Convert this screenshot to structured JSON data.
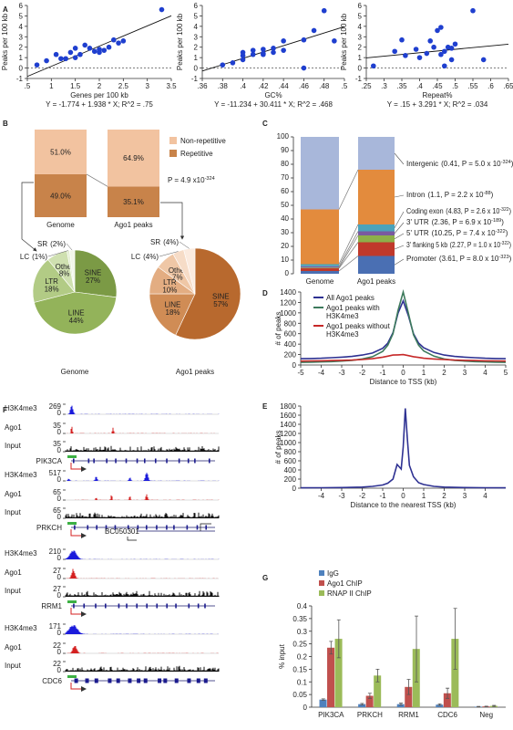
{
  "panel_labels": [
    "A",
    "B",
    "C",
    "D",
    "E",
    "F",
    "G"
  ],
  "chart_data": [
    {
      "type": "scatter",
      "xlabel": "Genes per 100 kb",
      "ylabel": "Peaks per 100 kb",
      "color": "#1f3fcf",
      "x": [
        0.7,
        0.9,
        1.1,
        1.2,
        1.3,
        1.4,
        1.5,
        1.5,
        1.6,
        1.7,
        1.8,
        1.9,
        2.0,
        2.0,
        2.1,
        2.2,
        2.3,
        2.4,
        2.5,
        3.3
      ],
      "values": [
        0.3,
        0.7,
        1.3,
        0.9,
        0.9,
        1.5,
        1.9,
        1.0,
        1.3,
        2.2,
        1.9,
        1.6,
        1.5,
        1.8,
        1.7,
        2.0,
        2.7,
        2.4,
        2.6,
        5.6
      ],
      "xlim": [
        0.5,
        3.5
      ],
      "xticks": [
        {
          "value": 0.5,
          "label": ".5"
        },
        1,
        1.5,
        2,
        2.5,
        3,
        3.5
      ],
      "ylim": [
        -1,
        6
      ],
      "yticks": [
        -1,
        0,
        1,
        2,
        3,
        4,
        5,
        6
      ],
      "reference_line": 0,
      "fit": {
        "intercept": -1.774,
        "slope": 1.938
      },
      "equation": "Y = -1.774 + 1.938 * X; R^2 = .75"
    },
    {
      "type": "scatter",
      "xlabel": "GC%",
      "ylabel": "Peaks per 100 kb",
      "color": "#1f3fcf",
      "x": [
        0.38,
        0.39,
        0.4,
        0.4,
        0.4,
        0.41,
        0.41,
        0.42,
        0.42,
        0.42,
        0.43,
        0.43,
        0.44,
        0.44,
        0.46,
        0.46,
        0.47,
        0.48,
        0.49
      ],
      "values": [
        0.3,
        0.5,
        0.8,
        1.2,
        1.5,
        1.3,
        1.7,
        1.8,
        1.3,
        1.4,
        1.9,
        1.5,
        2.6,
        1.7,
        2.7,
        0.0,
        3.6,
        5.5,
        2.6
      ],
      "xlim": [
        0.36,
        0.5
      ],
      "xticks": [
        {
          "value": 0.36,
          "label": ".36"
        },
        {
          "value": 0.38,
          "label": ".38"
        },
        {
          "value": 0.4,
          "label": ".4"
        },
        {
          "value": 0.42,
          "label": ".42"
        },
        {
          "value": 0.44,
          "label": ".44"
        },
        {
          "value": 0.46,
          "label": ".46"
        },
        {
          "value": 0.48,
          "label": ".48"
        },
        {
          "value": 0.5,
          "label": ".5"
        }
      ],
      "ylim": [
        -1,
        6
      ],
      "yticks": [
        -1,
        0,
        1,
        2,
        3,
        4,
        5,
        6
      ],
      "reference_line": 0,
      "fit": {
        "intercept": -11.234,
        "slope": 30.411
      },
      "equation": "Y = -11.234 + 30.411 * X; R^2 = .468"
    },
    {
      "type": "scatter",
      "xlabel": "Repeat%",
      "ylabel": "Peaks per 100 kb",
      "color": "#1f3fcf",
      "x": [
        0.27,
        0.33,
        0.35,
        0.36,
        0.39,
        0.4,
        0.42,
        0.43,
        0.44,
        0.45,
        0.46,
        0.46,
        0.47,
        0.47,
        0.48,
        0.49,
        0.49,
        0.5,
        0.55,
        0.58
      ],
      "values": [
        0.2,
        1.6,
        2.7,
        1.2,
        1.8,
        1.0,
        1.4,
        2.6,
        2.0,
        3.6,
        3.9,
        1.3,
        1.6,
        0.2,
        2.0,
        1.9,
        0.8,
        2.3,
        5.5,
        0.8
      ],
      "xlim": [
        0.25,
        0.65
      ],
      "xticks": [
        {
          "value": 0.25,
          "label": ".25"
        },
        {
          "value": 0.3,
          "label": ".3"
        },
        {
          "value": 0.35,
          "label": ".35"
        },
        {
          "value": 0.4,
          "label": ".4"
        },
        {
          "value": 0.45,
          "label": ".45"
        },
        {
          "value": 0.5,
          "label": ".5"
        },
        {
          "value": 0.55,
          "label": ".55"
        },
        {
          "value": 0.6,
          "label": ".6"
        },
        {
          "value": 0.65,
          "label": ".65"
        }
      ],
      "ylim": [
        -1,
        6
      ],
      "yticks": [
        -1,
        0,
        1,
        2,
        3,
        4,
        5,
        6
      ],
      "reference_line": 0,
      "fit": {
        "intercept": 0.15,
        "slope": 3.291
      },
      "equation": "Y = .15 + 3.291 * X; R^2 = .034"
    },
    {
      "type": "stacked_bar",
      "categories": [
        "Genome",
        "Ago1 peaks"
      ],
      "ylim": [
        0,
        100
      ],
      "legend": "right",
      "series": [
        {
          "name": "Repetitive",
          "color": "#c8834a",
          "values": [
            49.0,
            35.1
          ],
          "value_labels": [
            "49.0%",
            "35.1%"
          ]
        },
        {
          "name": "Non-repetitive",
          "color": "#f2c3a0",
          "values": [
            51.0,
            64.9
          ],
          "value_labels": [
            "51.0%",
            "64.9%"
          ]
        }
      ],
      "annotation": {
        "text": "P = 4.9 x10",
        "sup": "-324"
      }
    },
    {
      "type": "pie",
      "title": "Genome",
      "categories": [
        "SINE",
        "LINE",
        "LTR",
        "Other",
        "LC",
        "SR"
      ],
      "values": [
        27,
        44,
        18,
        8,
        1,
        2
      ],
      "value_labels": [
        "27%",
        "44%",
        "18%",
        "8%",
        "(1%)",
        "(2%)"
      ],
      "colors": [
        "#7b9a45",
        "#93b35a",
        "#b2cb85",
        "#cfe0b0",
        "#e4eed3",
        "#f1f6e8"
      ]
    },
    {
      "type": "pie",
      "title": "Ago1 peaks",
      "categories": [
        "SINE",
        "LINE",
        "LTR",
        "Other",
        "LC",
        "SR"
      ],
      "values": [
        57,
        18,
        10,
        7,
        4,
        4
      ],
      "value_labels": [
        "57%",
        "18%",
        "10%",
        "7%",
        "(4%)",
        "(4%)"
      ],
      "colors": [
        "#b8692e",
        "#d08c55",
        "#e3ad82",
        "#efc7a6",
        "#f6dcc7",
        "#fbebdf"
      ]
    },
    {
      "type": "stacked_bar",
      "categories": [
        "Genome",
        "Ago1 peaks"
      ],
      "ylim": [
        0,
        100
      ],
      "yticks": [
        0,
        10,
        20,
        30,
        40,
        50,
        60,
        70,
        80,
        90,
        100
      ],
      "legend": "leader",
      "series": [
        {
          "name": "Promoter",
          "color": "#4a6fb3",
          "values": [
            2,
            13
          ],
          "annotation": {
            "text": "(3.61, P = 8.0 x 10",
            "sup": "-323",
            "tail": ")"
          }
        },
        {
          "name": "3' flanking 5 kb",
          "color": "#c0392b",
          "values": [
            2,
            10
          ],
          "annotation": {
            "text": "(2.27, P = 1.0 x 10",
            "sup": "-322",
            "tail": ")"
          }
        },
        {
          "name": "5' UTR",
          "color": "#8db04a",
          "values": [
            0.5,
            5
          ],
          "annotation": {
            "text": "(10.25, P = 7.4 x 10",
            "sup": "-322",
            "tail": ")"
          }
        },
        {
          "name": "3' UTR",
          "color": "#7a5aa0",
          "values": [
            1,
            3
          ],
          "annotation": {
            "text": "(2.36, P = 6.9 x 10",
            "sup": "-189",
            "tail": ")"
          }
        },
        {
          "name": "Coding exon",
          "color": "#4aa3bb",
          "values": [
            1.5,
            5
          ],
          "annotation": {
            "text": "(4.83, P = 2.6 x 10",
            "sup": "-322",
            "tail": ")"
          }
        },
        {
          "name": "Intron",
          "color": "#e38b3d",
          "values": [
            40,
            40
          ],
          "annotation": {
            "text": "(1.1, P = 2.2 x 10",
            "sup": "-88",
            "tail": ")"
          }
        },
        {
          "name": "Intergenic",
          "color": "#a8b7da",
          "values": [
            53,
            24
          ],
          "annotation": {
            "text": "(0.41, P = 5.0 x 10",
            "sup": "-324",
            "tail": ")"
          }
        }
      ]
    },
    {
      "type": "line",
      "xlabel": "Distance to TSS (kb)",
      "ylabel": "# of peaks",
      "legend": "upper left",
      "x": [
        -5,
        -4.5,
        -4,
        -3.5,
        -3,
        -2.5,
        -2,
        -1.5,
        -1,
        -0.75,
        -0.5,
        -0.25,
        0,
        0.25,
        0.5,
        0.75,
        1,
        1.5,
        2,
        2.5,
        3,
        3.5,
        4,
        4.5,
        5
      ],
      "series": [
        {
          "name": "All Ago1 peaks",
          "color": "#2e3192",
          "values": [
            120,
            125,
            130,
            140,
            150,
            165,
            190,
            230,
            320,
            420,
            620,
            1000,
            1230,
            950,
            600,
            420,
            330,
            240,
            190,
            165,
            150,
            140,
            130,
            125,
            120
          ]
        },
        {
          "name": "Ago1 peaks with H3K4me3",
          "color": "#3d7a5c",
          "values": [
            50,
            55,
            60,
            65,
            75,
            90,
            115,
            160,
            260,
            380,
            600,
            1050,
            1400,
            1000,
            580,
            380,
            270,
            170,
            115,
            90,
            75,
            65,
            60,
            55,
            50
          ]
        },
        {
          "name": "Ago1 peaks without H3K4me3",
          "color": "#c62828",
          "values": [
            75,
            78,
            80,
            85,
            90,
            95,
            105,
            120,
            150,
            170,
            190,
            195,
            200,
            180,
            160,
            145,
            130,
            115,
            105,
            95,
            90,
            85,
            80,
            78,
            75
          ]
        }
      ],
      "xlim": [
        -5,
        5
      ],
      "xticks": [
        -5,
        -4,
        -3,
        -2,
        -1,
        0,
        1,
        2,
        3,
        4,
        5
      ],
      "ylim": [
        0,
        1400
      ],
      "yticks": [
        0,
        200,
        400,
        600,
        800,
        1000,
        1200,
        1400
      ]
    },
    {
      "type": "line",
      "xlabel": "Distance to the nearest TSS (kb)",
      "ylabel": "# of peaks",
      "color": "#2e3192",
      "x": [
        -5,
        -4,
        -3,
        -2,
        -1.5,
        -1,
        -0.75,
        -0.5,
        -0.3,
        -0.1,
        0,
        0.1,
        0.2,
        0.3,
        0.5,
        0.75,
        1,
        1.5,
        2,
        3,
        4,
        5
      ],
      "values": [
        8,
        10,
        15,
        25,
        40,
        70,
        110,
        200,
        520,
        420,
        900,
        1750,
        1100,
        500,
        250,
        120,
        80,
        40,
        25,
        15,
        10,
        8
      ],
      "xlim": [
        -5,
        5
      ],
      "xticks": [
        -4,
        -3,
        -2,
        -1,
        0,
        1,
        2,
        3,
        4
      ],
      "ylim": [
        0,
        1800
      ],
      "yticks": [
        0,
        200,
        400,
        600,
        800,
        1000,
        1200,
        1400,
        1600,
        1800
      ]
    },
    {
      "type": "bar",
      "ylabel": "% input",
      "legend": "upper left",
      "categories": [
        "PIK3CA",
        "PRKCH",
        "RRM1",
        "CDC6",
        "Neg"
      ],
      "series": [
        {
          "name": "IgG",
          "color": "#4f81bd",
          "values": [
            0.03,
            0.012,
            0.012,
            0.01,
            0.002
          ],
          "errors": [
            0.003,
            0.003,
            0.004,
            0.003,
            0.001
          ]
        },
        {
          "name": "Ago1 ChIP",
          "color": "#c0504d",
          "values": [
            0.235,
            0.045,
            0.08,
            0.055,
            0.003
          ],
          "errors": [
            0.025,
            0.01,
            0.03,
            0.02,
            0.001
          ]
        },
        {
          "name": "RNAP II ChIP",
          "color": "#9bbb59",
          "values": [
            0.27,
            0.125,
            0.23,
            0.27,
            0.005
          ],
          "errors": [
            0.075,
            0.025,
            0.13,
            0.12,
            0.002
          ]
        }
      ],
      "ylim": [
        0,
        0.4
      ],
      "yticks": [
        0,
        0.05,
        0.1,
        0.15,
        0.2,
        0.25,
        0.3,
        0.35,
        0.4
      ]
    }
  ],
  "tracks": {
    "loci": [
      {
        "gene": "PIK3CA",
        "signals": [
          {
            "name": "H3K4me3",
            "max": 269,
            "min": 0,
            "color": "#1a1adb"
          },
          {
            "name": "Ago1",
            "max": 35,
            "min": 0,
            "color": "#d42020"
          },
          {
            "name": "Input",
            "max": 35,
            "min": 0,
            "color": "#111111"
          }
        ]
      },
      {
        "gene": "PRKCH",
        "transcript": "BC050301",
        "signals": [
          {
            "name": "H3K4me3",
            "max": 517,
            "min": 0,
            "color": "#1a1adb"
          },
          {
            "name": "Ago1",
            "max": 65,
            "min": 0,
            "color": "#d42020"
          },
          {
            "name": "Input",
            "max": 65,
            "min": 0,
            "color": "#111111"
          }
        ]
      },
      {
        "gene": "RRM1",
        "signals": [
          {
            "name": "H3K4me3",
            "max": 210,
            "min": 0,
            "color": "#1a1adb"
          },
          {
            "name": "Ago1",
            "max": 27,
            "min": 0,
            "color": "#d42020"
          },
          {
            "name": "Input",
            "max": 27,
            "min": 0,
            "color": "#111111"
          }
        ]
      },
      {
        "gene": "CDC6",
        "signals": [
          {
            "name": "H3K4me3",
            "max": 171,
            "min": 0,
            "color": "#1a1adb"
          },
          {
            "name": "Ago1",
            "max": 22,
            "min": 0,
            "color": "#d42020"
          },
          {
            "name": "Input",
            "max": 22,
            "min": 0,
            "color": "#111111"
          }
        ]
      }
    ]
  }
}
